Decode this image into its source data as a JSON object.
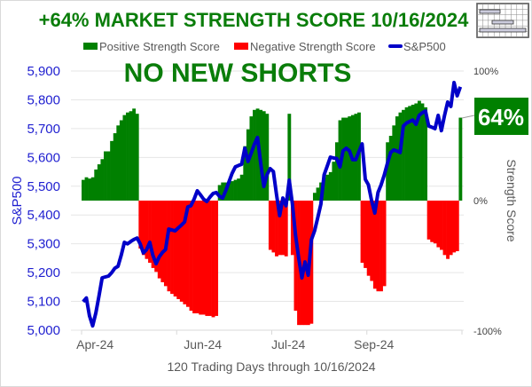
{
  "chart_data": {
    "type": "bar+line",
    "title": "+64% MARKET STRENGTH SCORE 10/16/2024",
    "banner": "NO NEW SHORTS",
    "xlabel": "120 Trading Days through 10/16/2024",
    "ylabel": "S&P500",
    "y2label": "Strength Score",
    "ylim": [
      5000,
      5900
    ],
    "y2lim": [
      -100,
      100
    ],
    "yticks": [
      "5,000",
      "5,100",
      "5,200",
      "5,300",
      "5,400",
      "5,500",
      "5,600",
      "5,700",
      "5,800",
      "5,900"
    ],
    "y2ticks": [
      "-100%",
      "0%",
      "100%"
    ],
    "xticks": [
      {
        "label": "Apr-24",
        "day": 2
      },
      {
        "label": "Jun-24",
        "day": 36
      },
      {
        "label": "Jul-24",
        "day": 63
      },
      {
        "label": "Sep-24",
        "day": 90
      }
    ],
    "legend": [
      "Positive Strength Score",
      "Negative Strength Score",
      "S&P500"
    ],
    "legend_position": "top",
    "grid": true,
    "callout": "64%",
    "colors": {
      "positive": "#008000",
      "negative": "#ff0000",
      "sp500": "#0000c8",
      "grid": "#e6e6e6"
    },
    "strength_score": [
      16,
      18,
      17,
      18,
      24,
      28,
      32,
      38,
      38,
      46,
      52,
      58,
      62,
      66,
      68,
      69,
      71,
      67,
      -37,
      -42,
      -45,
      -48,
      -52,
      -55,
      -60,
      -63,
      -66,
      -70,
      -72,
      -74,
      -76,
      -78,
      -80,
      -82,
      -85,
      -87,
      -87,
      -88,
      -88,
      -89,
      -89,
      -90,
      -89,
      12,
      14,
      14,
      14,
      15,
      16,
      17,
      20,
      42,
      55,
      65,
      70,
      71,
      70,
      69,
      67,
      -38,
      -40,
      -43,
      -42,
      -42,
      -43,
      67,
      -42,
      -85,
      -96,
      -96,
      -96,
      -96,
      -95,
      6,
      10,
      14,
      18,
      20,
      22,
      30,
      45,
      62,
      64,
      64,
      65,
      66,
      67,
      68,
      -48,
      -52,
      -58,
      -62,
      -68,
      -70,
      -70,
      -66,
      45,
      50,
      58,
      65,
      68,
      70,
      72,
      73,
      74,
      75,
      77,
      75,
      72,
      -30,
      -32,
      -33,
      -36,
      -38,
      -42,
      -45,
      -42,
      -40,
      -39,
      64
    ],
    "sp500": [
      5099,
      5112,
      5050,
      5015,
      5060,
      5120,
      5182,
      5185,
      5188,
      5200,
      5215,
      5222,
      5260,
      5305,
      5300,
      5308,
      5315,
      5320,
      5300,
      5268,
      5280,
      5305,
      5260,
      5231,
      5255,
      5270,
      5280,
      5351,
      5348,
      5345,
      5355,
      5365,
      5376,
      5428,
      5432,
      5455,
      5484,
      5470,
      5455,
      5447,
      5462,
      5475,
      5478,
      5465,
      5459,
      5485,
      5515,
      5545,
      5567,
      5572,
      5576,
      5632,
      5586,
      5615,
      5645,
      5669,
      5580,
      5499,
      5540,
      5561,
      5551,
      5470,
      5398,
      5459,
      5432,
      5521,
      5440,
      5330,
      5250,
      5182,
      5237,
      5191,
      5314,
      5345,
      5390,
      5438,
      5539,
      5570,
      5601,
      5598,
      5596,
      5567,
      5623,
      5632,
      5623,
      5592,
      5592,
      5620,
      5647,
      5524,
      5505,
      5450,
      5407,
      5478,
      5505,
      5539,
      5580,
      5617,
      5626,
      5622,
      5617,
      5709,
      5719,
      5725,
      5730,
      5715,
      5746,
      5755,
      5761,
      5709,
      5705,
      5700,
      5746,
      5693,
      5745,
      5792,
      5777,
      5860,
      5814,
      5845
    ]
  }
}
